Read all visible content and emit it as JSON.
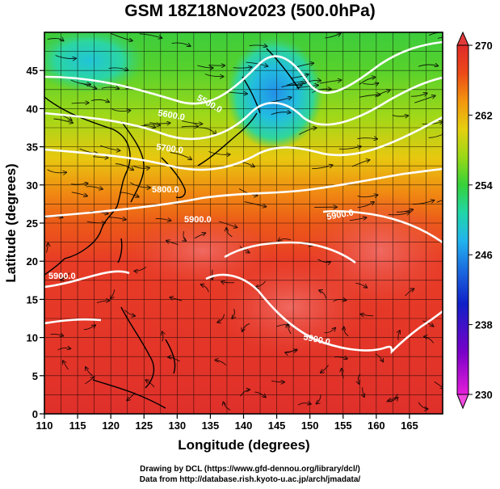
{
  "title": "GSM 18Z18Nov2023 (500.0hPa)",
  "axes": {
    "x_label": "Longitude (degrees)",
    "y_label": "Latitude  (degrees)",
    "x_ticks": [
      "110",
      "115",
      "120",
      "125",
      "130",
      "135",
      "140",
      "145",
      "150",
      "155",
      "160",
      "165"
    ],
    "y_ticks": [
      "0",
      "5",
      "10",
      "15",
      "20",
      "25",
      "30",
      "35",
      "40",
      "45"
    ],
    "x_range": [
      110,
      170
    ],
    "y_range": [
      0,
      50
    ]
  },
  "colorbar": {
    "min": 230,
    "max": 270,
    "tick_labels": [
      "230",
      "238",
      "246",
      "254",
      "262",
      "270"
    ],
    "colors": [
      "#e51ed9",
      "#7a00c8",
      "#1020c8",
      "#1c6ee0",
      "#22b4ee",
      "#20d6a8",
      "#36d23a",
      "#9ad816",
      "#e6d010",
      "#f2960e",
      "#ec4a18",
      "#e02a2a"
    ]
  },
  "contours": {
    "labels": [
      "5500.0",
      "5600.0",
      "5700.0",
      "5800.0",
      "5900.0",
      "5900.0",
      "5900.0",
      "5900.0"
    ]
  },
  "credits": {
    "line1": "Drawing by DCL (https://www.gfd-dennou.org/library/dcl/)",
    "line2": "Data from http://database.rish.kyoto-u.ac.jp/arch/jmadata/"
  }
}
